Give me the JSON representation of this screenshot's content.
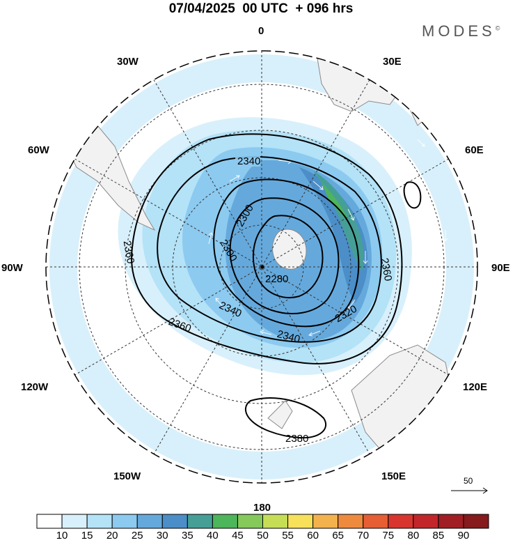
{
  "header": {
    "title": "07/04/2025  00 UTC  + 096 hrs",
    "brand": "MODES",
    "brand_mark": "©"
  },
  "map": {
    "projection": "south polar stereographic",
    "longitude_labels": {
      "top": "0",
      "top_right": "30E",
      "upper_right": "60E",
      "right": "90E",
      "lower_right": "120E",
      "bottom_right": "150E",
      "bottom": "180",
      "bottom_left": "150W",
      "lower_left": "120W",
      "left": "90W",
      "upper_left": "60W",
      "top_left": "30W"
    },
    "contour_labels": [
      "2340",
      "2300",
      "2300",
      "2280",
      "2320",
      "2340",
      "2340",
      "2360",
      "2360",
      "2360",
      "2380"
    ],
    "reference_vector": "50",
    "colors": {
      "land": "#f2f2f2",
      "coast": "#8a8a8a",
      "contour": "#000000",
      "grid": "#333333"
    }
  },
  "colorbar": {
    "ticks": [
      "10",
      "15",
      "20",
      "25",
      "30",
      "35",
      "40",
      "45",
      "50",
      "55",
      "60",
      "65",
      "70",
      "75",
      "80",
      "85",
      "90"
    ],
    "colors": [
      "#ffffff",
      "#d8f0fb",
      "#b4e2f7",
      "#8ccaf0",
      "#65a9dc",
      "#4b8ec8",
      "#459f96",
      "#4db55a",
      "#84c95a",
      "#c6de56",
      "#f7e05a",
      "#f3b24c",
      "#ee8a3d",
      "#e65e34",
      "#d8352e",
      "#c2262a",
      "#a11e24",
      "#861a1c"
    ]
  }
}
